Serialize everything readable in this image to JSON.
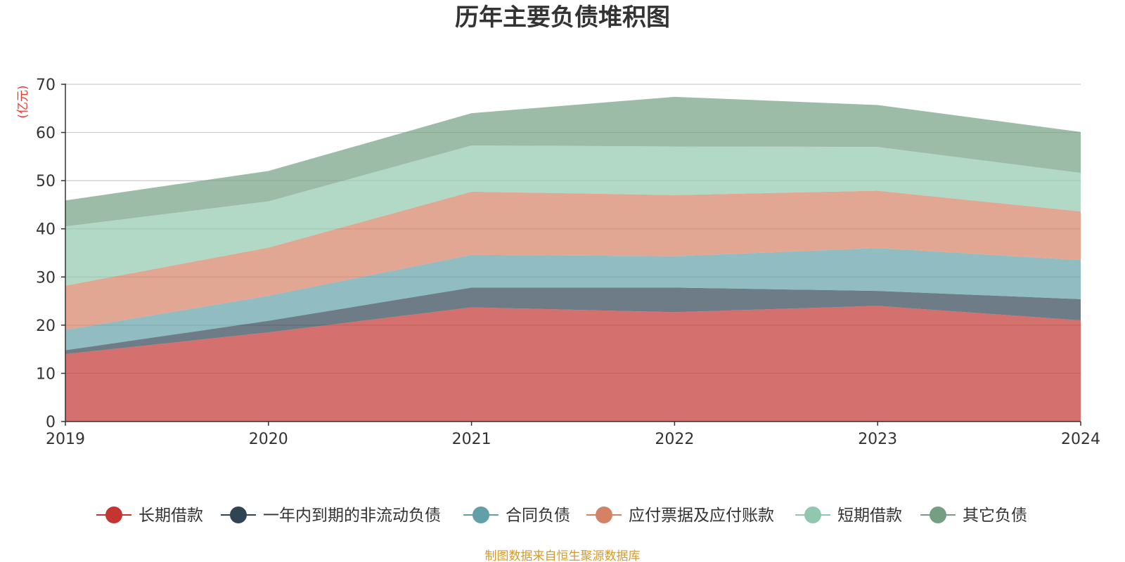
{
  "chart_data": {
    "type": "area",
    "stacked": true,
    "title": "历年主要负债堆积图",
    "unit_label": "(亿元)",
    "x": [
      "2019",
      "2020",
      "2021",
      "2022",
      "2023",
      "2024"
    ],
    "ylim": [
      0,
      70
    ],
    "yticks": [
      0,
      10,
      20,
      30,
      40,
      50,
      60,
      70
    ],
    "grid": true,
    "legend_position": "bottom",
    "series": [
      {
        "name": "长期借款",
        "color": "#c23531",
        "values": [
          14.0,
          18.5,
          23.7,
          22.7,
          24.0,
          21.0
        ]
      },
      {
        "name": "一年内到期的非流动负债",
        "color": "#2f4554",
        "values": [
          0.8,
          2.4,
          4.1,
          5.1,
          3.1,
          4.4
        ]
      },
      {
        "name": "合同负债",
        "color": "#61a0a8",
        "values": [
          4.2,
          5.2,
          6.8,
          6.5,
          8.9,
          8.1
        ]
      },
      {
        "name": "应付票据及应付账款",
        "color": "#d48265",
        "values": [
          9.2,
          10.0,
          13.1,
          12.7,
          11.9,
          10.1
        ]
      },
      {
        "name": "短期借款",
        "color": "#91c7ae",
        "values": [
          12.3,
          9.6,
          9.6,
          10.1,
          9.1,
          8.0
        ]
      },
      {
        "name": "其它负债",
        "color": "#749f83",
        "values": [
          5.4,
          6.3,
          6.7,
          10.3,
          8.7,
          8.5
        ]
      }
    ]
  },
  "source_text": "制图数据来自恒生聚源数据库"
}
